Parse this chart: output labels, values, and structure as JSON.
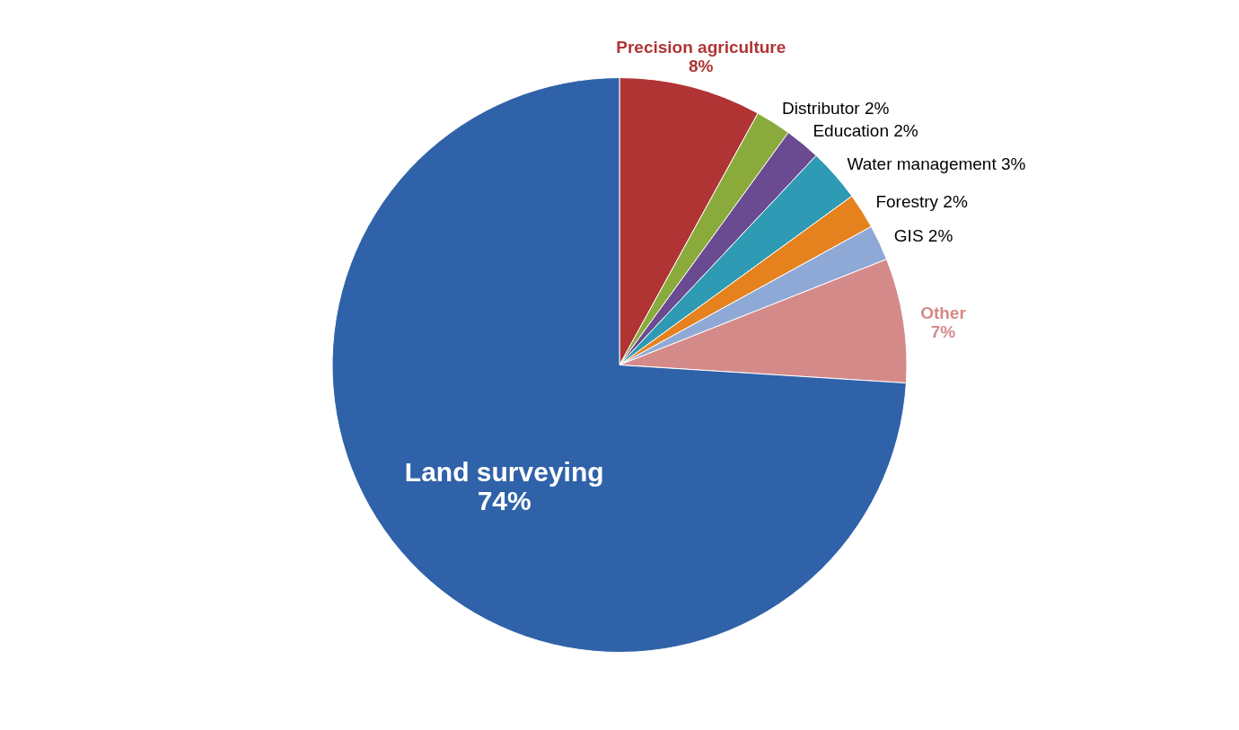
{
  "chart_data": {
    "type": "pie",
    "categories": [
      "Precision agriculture",
      "Distributor",
      "Education",
      "Water management",
      "Forestry",
      "GIS",
      "Other",
      "Land surveying"
    ],
    "values": [
      8,
      2,
      2,
      3,
      2,
      2,
      7,
      74
    ],
    "value_labels": [
      "8%",
      "2%",
      "2%",
      "3%",
      "2%",
      "2%",
      "7%",
      "74%"
    ],
    "colors": [
      "#b03434",
      "#8aab3c",
      "#6a4a90",
      "#2f9ab3",
      "#e5821e",
      "#8fa9d6",
      "#d58a8a",
      "#2f62a8"
    ],
    "legend": false
  }
}
